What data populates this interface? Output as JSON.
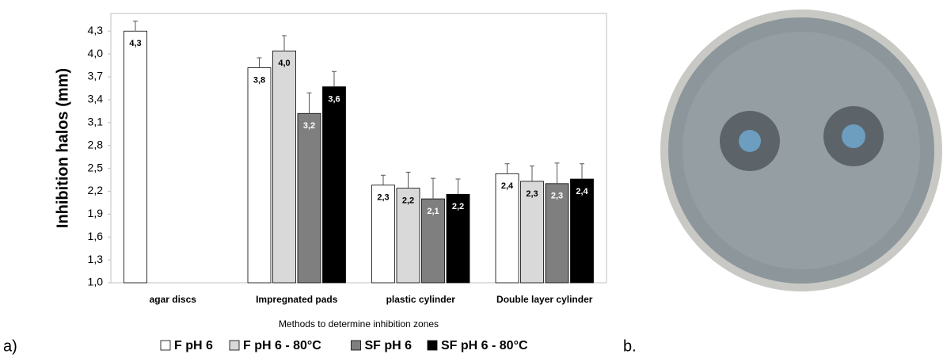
{
  "chart_data": {
    "type": "bar",
    "y_label": "Inhibition halos (mm)",
    "x_label": "Methods to determine inhibition zones",
    "categories": [
      "agar discs",
      "Impregnated pads",
      "plastic cylinder",
      "Double layer cylinder"
    ],
    "series": [
      {
        "name": "F pH 6",
        "color": "#ffffff",
        "label_color": "#000000",
        "values": [
          4.3,
          3.82,
          2.28,
          2.43
        ],
        "errors": [
          0.13,
          0.13,
          0.13,
          0.13
        ],
        "value_labels": [
          "4,3",
          "3,8",
          "2,3",
          "2,4"
        ]
      },
      {
        "name": "F pH 6 - 80°C",
        "color": "#d9d9d9",
        "label_color": "#000000",
        "values": [
          null,
          4.04,
          2.24,
          2.33
        ],
        "errors": [
          null,
          0.2,
          0.21,
          0.2
        ],
        "value_labels": [
          null,
          "4,0",
          "2,2",
          "2,3"
        ]
      },
      {
        "name": "SF pH 6",
        "color": "#7f7f7f",
        "label_color": "#ffffff",
        "values": [
          null,
          3.22,
          2.1,
          2.3
        ],
        "errors": [
          null,
          0.27,
          0.27,
          0.27
        ],
        "value_labels": [
          null,
          "3,2",
          "2,1",
          "2,3"
        ]
      },
      {
        "name": "SF pH 6 - 80°C",
        "color": "#000000",
        "label_color": "#ffffff",
        "values": [
          null,
          3.57,
          2.16,
          2.36
        ],
        "errors": [
          null,
          0.2,
          0.2,
          0.2
        ],
        "value_labels": [
          null,
          "3,6",
          "2,2",
          "2,4"
        ]
      }
    ],
    "ylim": [
      1.0,
      4.5
    ],
    "yticks": [
      {
        "value": 1.0,
        "label": "1,0"
      },
      {
        "value": 1.3,
        "label": "1,3"
      },
      {
        "value": 1.6,
        "label": "1,6"
      },
      {
        "value": 1.9,
        "label": "1,9"
      },
      {
        "value": 2.2,
        "label": "2,2"
      },
      {
        "value": 2.5,
        "label": "2,5"
      },
      {
        "value": 2.8,
        "label": "2,8"
      },
      {
        "value": 3.1,
        "label": "3,1"
      },
      {
        "value": 3.4,
        "label": "3,4"
      },
      {
        "value": 3.7,
        "label": "3,7"
      },
      {
        "value": 4.0,
        "label": "4,0"
      },
      {
        "value": 4.3,
        "label": "4,3"
      }
    ],
    "grid": false,
    "legend": "bottom"
  },
  "panel_labels": [
    "a)",
    "b."
  ]
}
